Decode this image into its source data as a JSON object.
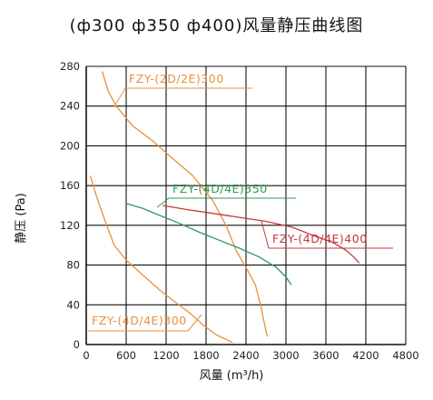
{
  "chart_data": {
    "type": "line",
    "title": "(ф300 ф350 ф400)风量静压曲线图",
    "xlabel": "风量 (m³/h)",
    "ylabel": "静压 (Pa)",
    "xlim": [
      0,
      4800
    ],
    "ylim": [
      0,
      280
    ],
    "xticks": [
      0,
      600,
      1200,
      1800,
      2400,
      3000,
      3600,
      4200,
      4800
    ],
    "yticks": [
      0,
      40,
      80,
      120,
      160,
      200,
      240,
      280
    ],
    "grid": true,
    "series": [
      {
        "name": "FZY-(2D/2E)300",
        "color": "#e8913a",
        "points": [
          [
            240,
            275
          ],
          [
            330,
            255
          ],
          [
            450,
            240
          ],
          [
            700,
            220
          ],
          [
            1000,
            205
          ],
          [
            1250,
            190
          ],
          [
            1600,
            170
          ],
          [
            1900,
            145
          ],
          [
            2100,
            120
          ],
          [
            2250,
            95
          ],
          [
            2420,
            75
          ],
          [
            2540,
            60
          ],
          [
            2620,
            40
          ],
          [
            2680,
            20
          ],
          [
            2720,
            8
          ]
        ]
      },
      {
        "name": "FZY-(4D/4E)300",
        "color": "#e8913a",
        "points": [
          [
            60,
            170
          ],
          [
            150,
            150
          ],
          [
            280,
            125
          ],
          [
            420,
            100
          ],
          [
            600,
            85
          ],
          [
            850,
            70
          ],
          [
            1100,
            55
          ],
          [
            1350,
            42
          ],
          [
            1550,
            32
          ],
          [
            1750,
            20
          ],
          [
            1950,
            10
          ],
          [
            2200,
            2
          ]
        ]
      },
      {
        "name": "FZY-(4D/4E)350",
        "color": "#2e9a57",
        "points": [
          [
            600,
            142
          ],
          [
            850,
            137
          ],
          [
            1100,
            130
          ],
          [
            1400,
            122
          ],
          [
            1700,
            113
          ],
          [
            2000,
            105
          ],
          [
            2300,
            97
          ],
          [
            2600,
            88
          ],
          [
            2850,
            78
          ],
          [
            3000,
            68
          ],
          [
            3080,
            60
          ]
        ]
      },
      {
        "name": "FZY-(4D/4E)400",
        "color": "#c8373a",
        "points": [
          [
            1150,
            140
          ],
          [
            1500,
            136
          ],
          [
            1900,
            132
          ],
          [
            2300,
            128
          ],
          [
            2700,
            124
          ],
          [
            3100,
            118
          ],
          [
            3400,
            110
          ],
          [
            3700,
            103
          ],
          [
            3900,
            95
          ],
          [
            4020,
            88
          ],
          [
            4100,
            82
          ]
        ]
      }
    ],
    "annotations": [
      {
        "text": "FZY-(2D/2E)300",
        "series": 0
      },
      {
        "text": "FZY-(4D/4E)350",
        "series": 2
      },
      {
        "text": "FZY-(4D/4E)400",
        "series": 3
      },
      {
        "text": "FZY-(4D/4E)300",
        "series": 1
      }
    ]
  }
}
